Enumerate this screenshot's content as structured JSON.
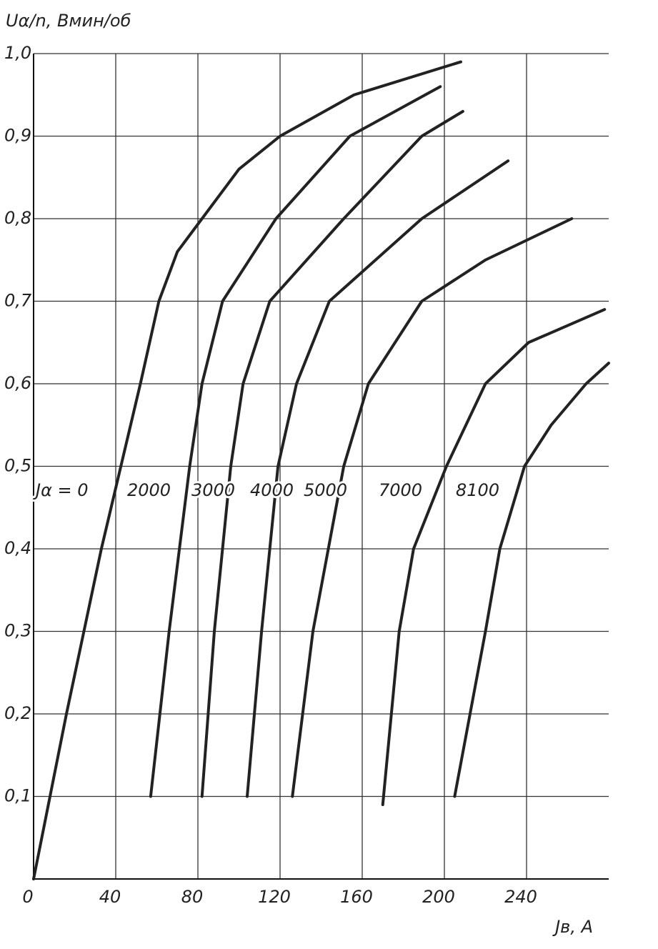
{
  "chart_data": {
    "type": "line",
    "y_label": "Uα/n, Вмин/об",
    "x_label": "Jв, А",
    "xlim": [
      0,
      280
    ],
    "ylim": [
      0,
      1
    ],
    "xticks": [
      0,
      40,
      80,
      120,
      160,
      200,
      240
    ],
    "yticks": [
      {
        "value": 0.1,
        "label": "0,1"
      },
      {
        "value": 0.2,
        "label": "0,2"
      },
      {
        "value": 0.3,
        "label": "0,3"
      },
      {
        "value": 0.4,
        "label": "0,4"
      },
      {
        "value": 0.5,
        "label": "0,5"
      },
      {
        "value": 0.6,
        "label": "0,6"
      },
      {
        "value": 0.7,
        "label": "0,7"
      },
      {
        "value": 0.8,
        "label": "0,8"
      },
      {
        "value": 0.9,
        "label": "0,9"
      },
      {
        "value": 1.0,
        "label": "1,0"
      }
    ],
    "grid": true,
    "series": [
      {
        "name": "Jα = 0",
        "color": "#222222",
        "x": [
          0,
          16,
          33,
          52,
          61,
          70,
          82,
          100,
          120,
          156,
          208
        ],
        "values": [
          0,
          0.2,
          0.4,
          0.6,
          0.7,
          0.76,
          0.8,
          0.86,
          0.9,
          0.95,
          0.99
        ]
      },
      {
        "name": "2000",
        "color": "#222222",
        "x": [
          57,
          66,
          76,
          82,
          92,
          118,
          154,
          198
        ],
        "values": [
          0.1,
          0.3,
          0.5,
          0.6,
          0.7,
          0.8,
          0.9,
          0.96
        ]
      },
      {
        "name": "3000",
        "color": "#222222",
        "x": [
          82,
          88,
          96,
          102,
          115,
          151,
          189,
          209
        ],
        "values": [
          0.1,
          0.3,
          0.5,
          0.6,
          0.7,
          0.8,
          0.9,
          0.93
        ]
      },
      {
        "name": "4000",
        "color": "#222222",
        "x": [
          104,
          111,
          119,
          128,
          144,
          189,
          231
        ],
        "values": [
          0.1,
          0.3,
          0.5,
          0.6,
          0.7,
          0.8,
          0.87
        ]
      },
      {
        "name": "5000",
        "color": "#222222",
        "x": [
          126,
          136,
          151,
          163,
          189,
          220,
          262
        ],
        "values": [
          0.1,
          0.3,
          0.5,
          0.6,
          0.7,
          0.75,
          0.8
        ]
      },
      {
        "name": "7000",
        "color": "#222222",
        "x": [
          170,
          178,
          185,
          201,
          220,
          241,
          278
        ],
        "values": [
          0.09,
          0.3,
          0.4,
          0.5,
          0.6,
          0.65,
          0.69
        ]
      },
      {
        "name": "8100",
        "color": "#222222",
        "x": [
          205,
          220,
          227,
          239,
          252,
          269,
          280
        ],
        "values": [
          0.1,
          0.3,
          0.4,
          0.5,
          0.55,
          0.6,
          0.625
        ]
      }
    ]
  }
}
